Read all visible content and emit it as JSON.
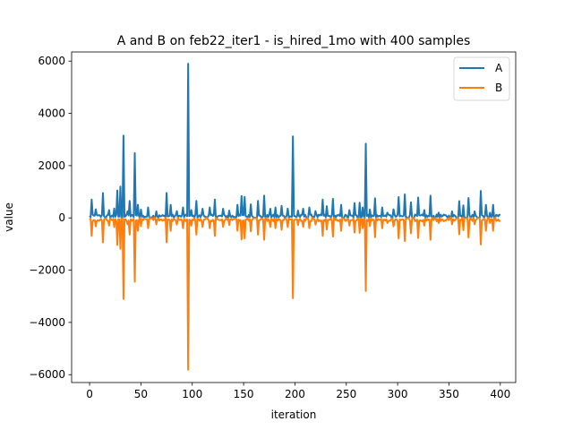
{
  "chart_data": {
    "type": "line",
    "title": "A and B on feb22_iter1 - is_hired_1mo with 400 samples",
    "xlabel": "iteration",
    "ylabel": "value",
    "xlim": [
      -17.5,
      415
    ],
    "ylim": [
      -6300,
      6350
    ],
    "xticks": [
      0,
      50,
      100,
      150,
      200,
      250,
      300,
      350,
      400
    ],
    "yticks": [
      -6000,
      -4000,
      -2000,
      0,
      2000,
      4000,
      6000
    ],
    "grid": false,
    "legend_position": "top-right",
    "spikes": [
      [
        2,
        700
      ],
      [
        6,
        330
      ],
      [
        13,
        950
      ],
      [
        19,
        300
      ],
      [
        24,
        360
      ],
      [
        27,
        1050
      ],
      [
        30,
        1200
      ],
      [
        33,
        3150
      ],
      [
        37,
        250
      ],
      [
        39,
        650
      ],
      [
        44,
        2480
      ],
      [
        47,
        500
      ],
      [
        50,
        320
      ],
      [
        57,
        400
      ],
      [
        65,
        250
      ],
      [
        75,
        950
      ],
      [
        79,
        500
      ],
      [
        85,
        260
      ],
      [
        91,
        400
      ],
      [
        96,
        5900
      ],
      [
        99,
        300
      ],
      [
        104,
        650
      ],
      [
        110,
        350
      ],
      [
        117,
        400
      ],
      [
        122,
        700
      ],
      [
        130,
        350
      ],
      [
        136,
        280
      ],
      [
        144,
        500
      ],
      [
        148,
        840
      ],
      [
        151,
        800
      ],
      [
        157,
        520
      ],
      [
        164,
        650
      ],
      [
        170,
        850
      ],
      [
        176,
        350
      ],
      [
        181,
        400
      ],
      [
        187,
        460
      ],
      [
        193,
        360
      ],
      [
        198,
        3120
      ],
      [
        203,
        280
      ],
      [
        208,
        350
      ],
      [
        214,
        400
      ],
      [
        220,
        260
      ],
      [
        227,
        700
      ],
      [
        231,
        450
      ],
      [
        237,
        730
      ],
      [
        245,
        500
      ],
      [
        253,
        300
      ],
      [
        258,
        570
      ],
      [
        263,
        580
      ],
      [
        266,
        400
      ],
      [
        269,
        2840
      ],
      [
        273,
        320
      ],
      [
        278,
        750
      ],
      [
        285,
        400
      ],
      [
        290,
        200
      ],
      [
        296,
        330
      ],
      [
        301,
        800
      ],
      [
        307,
        900
      ],
      [
        313,
        600
      ],
      [
        320,
        780
      ],
      [
        326,
        300
      ],
      [
        332,
        850
      ],
      [
        340,
        200
      ],
      [
        347,
        100
      ],
      [
        353,
        250
      ],
      [
        360,
        640
      ],
      [
        364,
        480
      ],
      [
        369,
        760
      ],
      [
        375,
        250
      ],
      [
        381,
        1030
      ],
      [
        386,
        500
      ],
      [
        390,
        200
      ],
      [
        393,
        500
      ],
      [
        397,
        100
      ]
    ],
    "series": [
      {
        "name": "A",
        "color": "#1f77b4",
        "sign": 1,
        "spike_scale": 1.0,
        "baseline": 60,
        "jitter": 70
      },
      {
        "name": "B",
        "color": "#ff7f0e",
        "sign": -1,
        "spike_scale": 0.985,
        "baseline": -60,
        "jitter": 70
      }
    ]
  }
}
